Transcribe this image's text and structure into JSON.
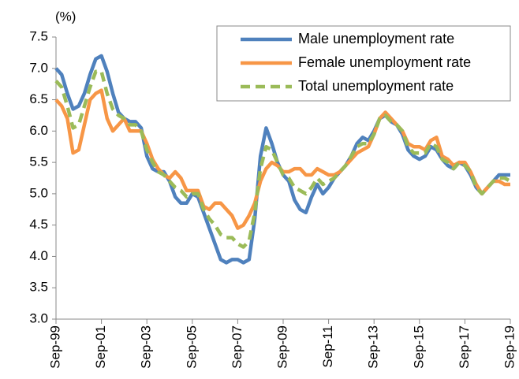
{
  "chart_data": {
    "type": "line",
    "y_label": "(%)",
    "categories": [
      "Sep-99",
      null,
      null,
      null,
      null,
      null,
      null,
      null,
      "Sep-01",
      null,
      null,
      null,
      null,
      null,
      null,
      null,
      "Sep-03",
      null,
      null,
      null,
      null,
      null,
      null,
      null,
      "Sep-05",
      null,
      null,
      null,
      null,
      null,
      null,
      null,
      "Sep-07",
      null,
      null,
      null,
      null,
      null,
      null,
      null,
      "Sep-09",
      null,
      null,
      null,
      null,
      null,
      null,
      null,
      "Sep-11",
      null,
      null,
      null,
      null,
      null,
      null,
      null,
      "Sep-13",
      null,
      null,
      null,
      null,
      null,
      null,
      null,
      "Sep-15",
      null,
      null,
      null,
      null,
      null,
      null,
      null,
      "Sep-17",
      null,
      null,
      null,
      null,
      null,
      null,
      null,
      "Sep-19"
    ],
    "series": [
      {
        "name": "Male unemployment rate",
        "color": "#4f81bd",
        "dash": false,
        "values": [
          7.0,
          6.9,
          6.6,
          6.35,
          6.4,
          6.6,
          6.9,
          7.15,
          7.2,
          6.95,
          6.6,
          6.3,
          6.2,
          6.15,
          6.15,
          6.05,
          5.6,
          5.4,
          5.35,
          5.35,
          5.2,
          4.95,
          4.85,
          4.85,
          5.0,
          4.95,
          4.7,
          4.45,
          4.2,
          3.95,
          3.9,
          3.95,
          3.95,
          3.9,
          3.95,
          4.6,
          5.6,
          6.05,
          5.8,
          5.5,
          5.3,
          5.2,
          4.9,
          4.75,
          4.7,
          4.95,
          5.15,
          5.0,
          5.1,
          5.25,
          5.35,
          5.45,
          5.6,
          5.8,
          5.9,
          5.85,
          6.0,
          6.2,
          6.25,
          6.15,
          6.1,
          5.95,
          5.7,
          5.6,
          5.55,
          5.6,
          5.75,
          5.7,
          5.55,
          5.45,
          5.4,
          5.5,
          5.45,
          5.3,
          5.1,
          5.0,
          5.1,
          5.2,
          5.3,
          5.3,
          5.3
        ]
      },
      {
        "name": "Female unemployment rate",
        "color": "#f79646",
        "dash": false,
        "values": [
          6.5,
          6.4,
          6.2,
          5.65,
          5.7,
          6.1,
          6.5,
          6.6,
          6.65,
          6.2,
          6.0,
          6.1,
          6.2,
          6.0,
          6.0,
          6.0,
          5.8,
          5.55,
          5.4,
          5.3,
          5.25,
          5.35,
          5.25,
          5.05,
          5.05,
          5.05,
          4.8,
          4.75,
          4.85,
          4.85,
          4.75,
          4.65,
          4.45,
          4.5,
          4.65,
          4.85,
          5.2,
          5.4,
          5.5,
          5.45,
          5.35,
          5.35,
          5.4,
          5.4,
          5.3,
          5.3,
          5.4,
          5.35,
          5.3,
          5.3,
          5.35,
          5.45,
          5.55,
          5.65,
          5.7,
          5.75,
          5.95,
          6.2,
          6.3,
          6.2,
          6.1,
          6.0,
          5.8,
          5.75,
          5.75,
          5.7,
          5.85,
          5.9,
          5.6,
          5.55,
          5.45,
          5.5,
          5.5,
          5.35,
          5.15,
          5.0,
          5.1,
          5.2,
          5.2,
          5.15,
          5.15
        ]
      },
      {
        "name": "Total unemployment rate",
        "color": "#9bbb59",
        "dash": true,
        "values": [
          6.8,
          6.7,
          6.4,
          6.05,
          6.1,
          6.4,
          6.7,
          6.95,
          6.95,
          6.6,
          6.35,
          6.25,
          6.2,
          6.1,
          6.1,
          6.0,
          5.7,
          5.5,
          5.35,
          5.3,
          5.2,
          5.1,
          5.05,
          4.95,
          5.0,
          5.0,
          4.75,
          4.6,
          4.5,
          4.35,
          4.3,
          4.3,
          4.2,
          4.15,
          4.25,
          4.7,
          5.4,
          5.75,
          5.7,
          5.5,
          5.3,
          5.25,
          5.1,
          5.05,
          5.0,
          5.1,
          5.25,
          5.15,
          5.2,
          5.25,
          5.35,
          5.45,
          5.6,
          5.75,
          5.8,
          5.8,
          5.95,
          6.2,
          6.25,
          6.15,
          6.1,
          6.0,
          5.75,
          5.65,
          5.65,
          5.65,
          5.8,
          5.75,
          5.55,
          5.5,
          5.4,
          5.5,
          5.45,
          5.35,
          5.1,
          5.0,
          5.1,
          5.2,
          5.25,
          5.25,
          5.2
        ]
      }
    ],
    "ylim": [
      3.0,
      7.5
    ],
    "yticks": [
      {
        "value": 3.0,
        "label": "3.0"
      },
      3.5,
      {
        "value": 4.0,
        "label": "4.0"
      },
      4.5,
      {
        "value": 5.0,
        "label": "5.0"
      },
      5.5,
      {
        "value": 6.0,
        "label": "6.0"
      },
      6.5,
      {
        "value": 7.0,
        "label": "7.0"
      },
      7.5
    ],
    "grid": false,
    "legend": "top-right"
  }
}
